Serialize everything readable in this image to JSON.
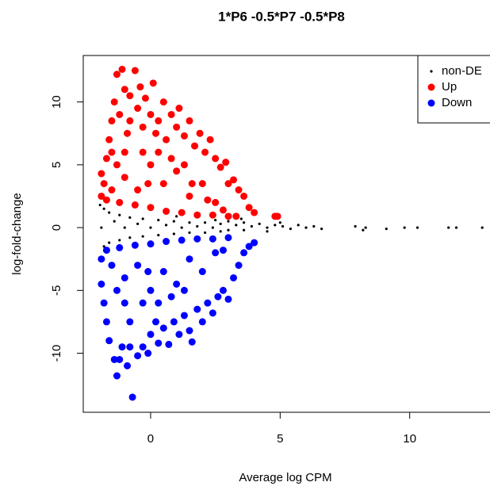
{
  "chart_data": {
    "type": "scatter",
    "title": "1*P6 -0.5*P7 -0.5*P8",
    "x_label": "Average log CPM",
    "y_label": "log-fold-change",
    "xlim": [
      -2.6,
      13.1
    ],
    "ylim": [
      -14.7,
      13.7
    ],
    "xticks": [
      0,
      5,
      10
    ],
    "yticks": [
      -10,
      -5,
      0,
      5,
      10
    ],
    "grid": false,
    "legend": "top-right",
    "series": [
      {
        "name": "non-DE",
        "color": "#000000",
        "marker": "dot",
        "x": [
          -1.95,
          -1.9,
          -1.9,
          -1.8,
          -1.8,
          -1.6,
          -1.6,
          -1.4,
          -1.2,
          -1.2,
          -1,
          -0.8,
          -0.8,
          -0.5,
          -0.3,
          -0.3,
          0,
          0.3,
          0.3,
          0.6,
          0.9,
          0.9,
          1.2,
          1.5,
          1.5,
          1.8,
          2.1,
          2.1,
          2.4,
          2.7,
          2.7,
          3,
          3,
          3.3,
          3.6,
          3.6,
          3.9,
          4.2,
          4.5,
          4.8,
          5.1,
          5.4,
          5.7,
          6,
          6.3,
          6.6,
          7.9,
          8.2,
          8.3,
          9.1,
          9.8,
          10.3,
          11.5,
          11.8,
          12.8,
          4.5,
          5,
          3.5,
          2.5,
          1
        ],
        "values": [
          1.8,
          -2.5,
          0,
          1.5,
          -1.5,
          1.2,
          -1.2,
          0.5,
          1,
          -1,
          0,
          0.8,
          -0.8,
          0.3,
          0.7,
          -0.7,
          0,
          0.6,
          -0.6,
          0.2,
          0.5,
          -0.5,
          0,
          0.4,
          -0.4,
          0.1,
          0.4,
          -0.4,
          0,
          0.3,
          -0.3,
          0.5,
          -0.2,
          0.2,
          0.4,
          -0.2,
          0.1,
          0.3,
          0,
          0.2,
          0.1,
          -0.1,
          0.2,
          0,
          0.1,
          -0.1,
          0.1,
          -0.2,
          0,
          -0.1,
          0,
          0,
          0,
          0,
          0,
          -0.3,
          0.4,
          0.7,
          0.6,
          0.9
        ]
      },
      {
        "name": "Up",
        "color": "#ff0000",
        "marker": "circle",
        "x": [
          -1.9,
          -1.9,
          -1.8,
          -1.7,
          -1.6,
          -1.5,
          -1.5,
          -1.4,
          -1.3,
          -1.1,
          -1.2,
          -1.0,
          -0.9,
          -0.8,
          -0.6,
          -0.5,
          -0.4,
          -0.3,
          -0.2,
          0,
          0.1,
          0.3,
          0.5,
          0.6,
          0.8,
          1.0,
          1.1,
          1.3,
          1.5,
          1.7,
          1.9,
          2.1,
          2.3,
          2.5,
          2.7,
          2.9,
          3.0,
          3.2,
          3.4,
          3.6,
          3.8,
          4.0,
          4.8,
          4.9,
          -1.5,
          -1.0,
          -0.5,
          0,
          0.5,
          1.0,
          1.5,
          2.0,
          2.5,
          -1.7,
          -1.2,
          -0.6,
          0,
          0.6,
          1.2,
          1.8,
          2.4,
          3.0,
          -1.0,
          -0.3,
          0.3,
          0.8,
          1.3,
          -0.8,
          0.2,
          3.3,
          2.8,
          2.2,
          1.6,
          -1.3,
          -0.1
        ],
        "values": [
          2.5,
          4.3,
          3.5,
          5.5,
          7,
          8.5,
          6,
          10,
          12.2,
          12.6,
          9,
          11,
          7.5,
          10.5,
          12.5,
          9.5,
          11.2,
          8,
          10.3,
          9,
          11.5,
          8.5,
          10,
          7,
          9,
          8,
          9.5,
          7.3,
          8.5,
          6.5,
          7.5,
          6,
          7,
          5.5,
          4.8,
          5.2,
          3.5,
          3.8,
          3,
          2.5,
          1.6,
          1.2,
          0.9,
          0.9,
          3,
          4,
          3,
          5,
          3.5,
          4.5,
          2.5,
          3.5,
          2,
          2.2,
          2.0,
          1.8,
          1.6,
          1.3,
          1.2,
          1.0,
          1.0,
          0.9,
          6,
          6,
          6,
          5.5,
          5,
          8.5,
          7.5,
          0.9,
          1.4,
          2.2,
          3.5,
          5,
          3.5
        ]
      },
      {
        "name": "Down",
        "color": "#0000ff",
        "marker": "circle",
        "x": [
          -1.9,
          -1.9,
          -1.8,
          -1.7,
          -1.6,
          -1.4,
          -1.3,
          -1.2,
          -1.1,
          -0.9,
          -0.7,
          -0.8,
          -0.5,
          -0.3,
          -0.1,
          0,
          0.3,
          0.5,
          0.7,
          0.9,
          1.1,
          1.3,
          1.5,
          1.6,
          1.8,
          2,
          2.2,
          2.4,
          2.6,
          2.8,
          3,
          3.2,
          3.4,
          3.6,
          3.8,
          4.0,
          -1.5,
          -1.0,
          -0.5,
          0,
          0.5,
          1,
          1.5,
          2,
          2.5,
          -1.7,
          -1.2,
          -0.6,
          0,
          0.6,
          1.2,
          1.8,
          2.4,
          3,
          -1,
          -0.3,
          0.3,
          0.8,
          1.3,
          -0.8,
          0.2,
          -1.3,
          -0.1,
          2.8
        ],
        "values": [
          -2.5,
          -4.5,
          -6,
          -7.5,
          -9,
          -10.5,
          -11.8,
          -10.5,
          -9.5,
          -11,
          -13.5,
          -9.5,
          -10.2,
          -9.5,
          -10,
          -8.5,
          -9.2,
          -8,
          -9.3,
          -7.5,
          -8.5,
          -7,
          -8.2,
          -9.1,
          -6.5,
          -7.5,
          -6,
          -6.8,
          -5.5,
          -5,
          -5.7,
          -4,
          -3,
          -2,
          -1.5,
          -1.2,
          -3,
          -4,
          -3,
          -5,
          -3.5,
          -4.5,
          -2.5,
          -3.5,
          -2,
          -1.8,
          -1.6,
          -1.4,
          -1.3,
          -1.1,
          -1.0,
          -0.9,
          -0.9,
          -0.8,
          -6,
          -6,
          -6,
          -5.5,
          -5,
          -7.5,
          -7.5,
          -5,
          -3.5,
          -1.8
        ]
      }
    ]
  }
}
